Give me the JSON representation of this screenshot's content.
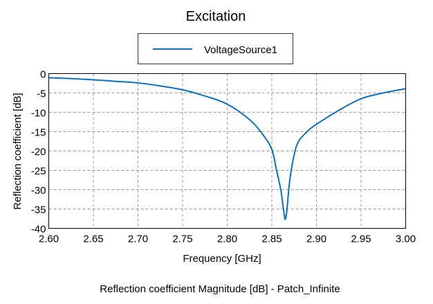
{
  "chart_data": {
    "type": "line",
    "title": "Excitation",
    "xlabel": "Frequency [GHz]",
    "ylabel": "Reflection coefficient [dB]",
    "caption": "Reflection coefficient Magnitude [dB] - Patch_Infinite",
    "xlim": [
      2.6,
      3.0
    ],
    "ylim": [
      -40,
      0
    ],
    "xticks": [
      "2.60",
      "2.65",
      "2.70",
      "2.75",
      "2.80",
      "2.85",
      "2.90",
      "2.95",
      "3.00"
    ],
    "yticks": [
      "0",
      "-5",
      "-10",
      "-15",
      "-20",
      "-25",
      "-30",
      "-35",
      "-40"
    ],
    "grid": true,
    "legend_position": "top-center",
    "series": [
      {
        "name": "VoltageSource1",
        "color": "#0a6fc2",
        "x": [
          2.6,
          2.625,
          2.65,
          2.675,
          2.7,
          2.725,
          2.75,
          2.775,
          2.8,
          2.825,
          2.84,
          2.85,
          2.855,
          2.86,
          2.863,
          2.865,
          2.867,
          2.87,
          2.875,
          2.88,
          2.89,
          2.9,
          2.925,
          2.95,
          2.975,
          3.0
        ],
        "y": [
          -1.07,
          -1.3,
          -1.6,
          -2.0,
          -2.4,
          -3.2,
          -4.2,
          -5.8,
          -7.9,
          -11.9,
          -15.8,
          -19.6,
          -24.7,
          -30.0,
          -35.0,
          -37.7,
          -35.0,
          -27.7,
          -21.0,
          -17.5,
          -14.9,
          -13.1,
          -9.5,
          -6.5,
          -5.0,
          -3.9
        ]
      }
    ]
  }
}
